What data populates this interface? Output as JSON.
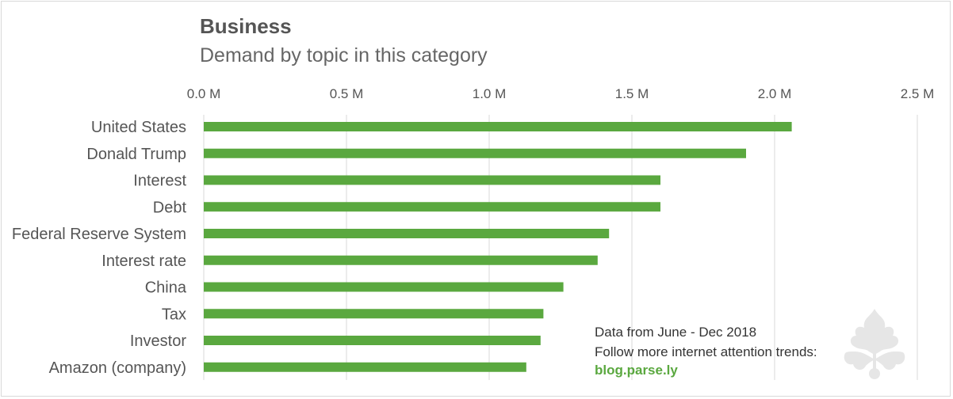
{
  "chart_data": {
    "type": "bar",
    "orientation": "horizontal",
    "title": "Business",
    "subtitle": "Demand by topic in this category",
    "categories": [
      "United States",
      "Donald Trump",
      "Interest",
      "Debt",
      "Federal Reserve System",
      "Interest rate",
      "China",
      "Tax",
      "Investor",
      "Amazon (company)"
    ],
    "values": [
      2.06,
      1.9,
      1.6,
      1.6,
      1.42,
      1.38,
      1.26,
      1.19,
      1.18,
      1.13
    ],
    "unit": "M",
    "xlim": [
      0,
      2.5
    ],
    "xticks": [
      "0.0 M",
      "0.5 M",
      "1.0 M",
      "1.5 M",
      "2.0 M",
      "2.5 M"
    ],
    "xaxis_position": "top",
    "grid": true,
    "bar_color": "#5aa83f",
    "grid_color": "#d9d9d9"
  },
  "notes": {
    "line1": "Data from June - Dec 2018",
    "line2": "Follow more internet attention trends:",
    "link": "blog.parse.ly"
  },
  "logo": {
    "icon": "parsely-leaf-icon",
    "color": "#e8e8e8"
  }
}
